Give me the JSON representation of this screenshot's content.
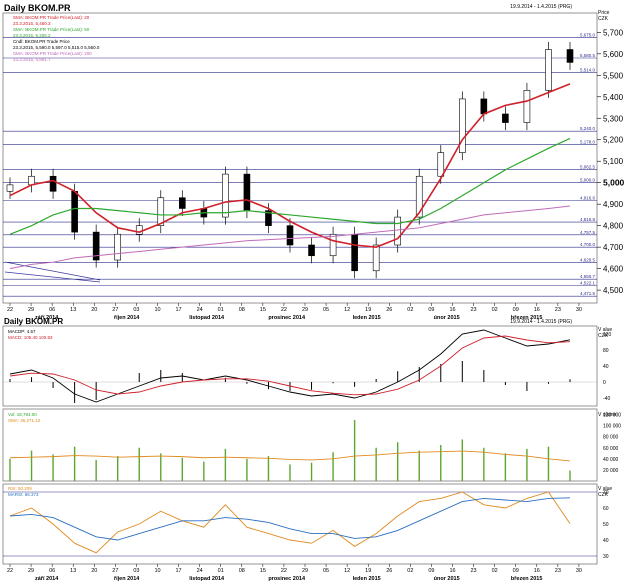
{
  "main": {
    "title": "Daily BKOM.PR",
    "date_range": "19.9.2014 - 1.4.2015 (PRG)",
    "axis_unit": [
      "Price",
      "CZK"
    ],
    "legend": [
      {
        "label": "SMA: BKOM.PR Trade Price(Last): 20",
        "value": "23.3.2015, 5,460.3",
        "color": "#d0202a"
      },
      {
        "label": "SMA: BKOM.PR Trade Price(Last): 50",
        "value": "23.3.2015, 5,206.2",
        "color": "#2ea82e"
      },
      {
        "label": "Cndl: BKOM.PR Trade Price",
        "value": "23.3.2015, 5,590.0  5,597.0  5,515.0  5,560.0",
        "color": "#000000"
      },
      {
        "label": "SMA: BKOM.PR Trade Price(Last): 200",
        "value": "23.3.2015, 4,891.7",
        "color": "#c06ab8"
      }
    ],
    "levels": [
      {
        "value": 5675.0,
        "label": "5,675.0"
      },
      {
        "value": 5580.5,
        "label": "5,580.5"
      },
      {
        "value": 5514.0,
        "label": "5,514.0"
      },
      {
        "value": 5240.0,
        "label": "5,240.0"
      },
      {
        "value": 5178.0,
        "label": "5,178.0"
      },
      {
        "value": 5062.5,
        "label": "5,062.5"
      },
      {
        "value": 5000.0,
        "label": "5,000.0"
      },
      {
        "value": 4916.6,
        "label": "4,916.6"
      },
      {
        "value": 4816.8,
        "label": "4,816.8"
      },
      {
        "value": 4757.5,
        "label": "4,757.5"
      },
      {
        "value": 4700.0,
        "label": "4,700.0"
      },
      {
        "value": 4629.5,
        "label": "4,629.5"
      },
      {
        "value": 4550.7,
        "label": "4,550.7"
      },
      {
        "value": 4522.1,
        "label": "4,522.1"
      },
      {
        "value": 4471.5,
        "label": "4,471.5"
      }
    ],
    "yticks": [
      "5,700",
      "5,600",
      "5,500",
      "5,400",
      "5,300",
      "5,200",
      "5,100",
      "5,000",
      "4,900",
      "4,800",
      "4,700",
      "4,600",
      "4,500"
    ]
  },
  "macd": {
    "title": "Daily BKOM.PR",
    "date_range": "19.9.2014 - 1.4.2015 (PRG)",
    "legend": [
      "MACDP: 4.57",
      "MACD: 105.40  100.83"
    ],
    "axis_unit": [
      "V alue",
      "CZK"
    ],
    "yticks": [
      "120",
      "80",
      "40",
      "0",
      "-40"
    ]
  },
  "volume": {
    "legend": [
      "Vol: 18,794.00",
      "SMA: 36,271.10"
    ],
    "axis_unit": [
      "V olume"
    ],
    "yticks": [
      "120 000",
      "100 000",
      "80 000",
      "60 000",
      "40 000",
      "20 000"
    ]
  },
  "rsi": {
    "legend": [
      "RSI: 50.209",
      "MARSI: 66.373"
    ],
    "axis_unit": [
      "V alue",
      "CZK"
    ],
    "yticks": [
      "70",
      "60",
      "50",
      "40",
      "30"
    ]
  },
  "dates": {
    "days": [
      "22",
      "29",
      "06",
      "13",
      "20",
      "27",
      "03",
      "10",
      "17",
      "24",
      "01",
      "08",
      "15",
      "22",
      "29",
      "05",
      "12",
      "19",
      "26",
      "02",
      "09",
      "16",
      "23",
      "02",
      "09",
      "16",
      "23",
      "30"
    ],
    "months": [
      "září 2014",
      "říjen 2014",
      "listopad 2014",
      "prosinec 2014",
      "leden 2015",
      "únor 2015",
      "březen 2015"
    ]
  },
  "chart_data": [
    {
      "type": "candlestick",
      "title": "Daily BKOM.PR",
      "ylim": [
        4440,
        5790
      ],
      "x": [
        "22.9.2014",
        "29.9.2014",
        "6.10.2014",
        "13.10.2014",
        "20.10.2014",
        "27.10.2014",
        "3.11.2014",
        "10.11.2014",
        "17.11.2014",
        "24.11.2014",
        "1.12.2014",
        "8.12.2014",
        "15.12.2014",
        "22.12.2014",
        "29.12.2014",
        "5.1.2015",
        "12.1.2015",
        "19.1.2015",
        "26.1.2015",
        "2.2.2015",
        "9.2.2015",
        "16.2.2015",
        "23.2.2015",
        "2.3.2015",
        "9.3.2015",
        "16.3.2015",
        "23.3.2015"
      ],
      "close": [
        4990,
        5030,
        4960,
        4770,
        4640,
        4760,
        4800,
        4930,
        4880,
        4840,
        5040,
        4870,
        4800,
        4710,
        4660,
        4760,
        4590,
        4710,
        4840,
        5030,
        5140,
        5390,
        5320,
        5280,
        5430,
        5620,
        5560
      ],
      "series": [
        {
          "name": "SMA: BKOM.PR Trade Price(Last): 20",
          "values": [
            4940,
            4990,
            5010,
            4960,
            4860,
            4790,
            4770,
            4810,
            4860,
            4880,
            4910,
            4920,
            4880,
            4820,
            4770,
            4730,
            4710,
            4700,
            4740,
            4860,
            5020,
            5200,
            5320,
            5360,
            5380,
            5420,
            5460
          ]
        },
        {
          "name": "SMA: BKOM.PR Trade Price(Last): 50",
          "values": [
            4760,
            4800,
            4850,
            4880,
            4880,
            4870,
            4860,
            4850,
            4850,
            4860,
            4860,
            4870,
            4860,
            4850,
            4840,
            4830,
            4820,
            4810,
            4810,
            4830,
            4880,
            4940,
            5000,
            5060,
            5110,
            5160,
            5206
          ]
        },
        {
          "name": "SMA: BKOM.PR Trade Price(Last): 200",
          "values": [
            4600,
            4620,
            4630,
            4650,
            4660,
            4670,
            4680,
            4690,
            4700,
            4710,
            4720,
            4730,
            4735,
            4740,
            4745,
            4750,
            4760,
            4770,
            4780,
            4790,
            4810,
            4830,
            4850,
            4860,
            4870,
            4880,
            4891.7
          ]
        }
      ]
    },
    {
      "type": "line",
      "title": "MACD",
      "ylim": [
        -60,
        140
      ],
      "series": [
        {
          "name": "MACD",
          "values": [
            20,
            30,
            10,
            -30,
            -50,
            -30,
            -10,
            10,
            15,
            5,
            15,
            5,
            -10,
            -25,
            -35,
            -30,
            -40,
            -25,
            0,
            30,
            70,
            120,
            130,
            110,
            90,
            95,
            105.4
          ]
        },
        {
          "name": "signal",
          "values": [
            15,
            22,
            20,
            5,
            -20,
            -30,
            -25,
            -10,
            0,
            5,
            8,
            8,
            2,
            -10,
            -22,
            -28,
            -32,
            -30,
            -18,
            5,
            40,
            85,
            110,
            115,
            105,
            98,
            100.83
          ]
        }
      ]
    },
    {
      "type": "bar",
      "title": "Volume",
      "ylim": [
        0,
        130000
      ],
      "series": [
        {
          "name": "Vol",
          "values": [
            40000,
            55000,
            48000,
            62000,
            38000,
            45000,
            60000,
            50000,
            42000,
            35000,
            58000,
            40000,
            45000,
            30000,
            33000,
            52000,
            110000,
            60000,
            70000,
            55000,
            65000,
            75000,
            60000,
            50000,
            58000,
            62000,
            18794
          ]
        },
        {
          "name": "SMA",
          "values": [
            42000,
            43000,
            44000,
            46000,
            45000,
            43000,
            44000,
            45000,
            44000,
            42000,
            43000,
            42000,
            41000,
            39000,
            38000,
            40000,
            45000,
            47000,
            50000,
            52000,
            53000,
            54000,
            52000,
            48000,
            45000,
            40000,
            36271.1
          ]
        }
      ]
    },
    {
      "type": "line",
      "title": "RSI",
      "ylim": [
        25,
        75
      ],
      "series": [
        {
          "name": "RSI",
          "values": [
            55,
            60,
            50,
            38,
            32,
            45,
            50,
            58,
            52,
            48,
            62,
            48,
            44,
            40,
            38,
            46,
            36,
            44,
            55,
            64,
            66,
            70,
            62,
            60,
            66,
            70,
            50.209
          ]
        },
        {
          "name": "MARSI",
          "values": [
            55,
            56,
            54,
            48,
            42,
            40,
            44,
            48,
            52,
            52,
            54,
            53,
            51,
            47,
            44,
            44,
            41,
            42,
            46,
            52,
            58,
            64,
            66,
            65,
            64,
            66,
            66.373
          ]
        }
      ]
    }
  ]
}
